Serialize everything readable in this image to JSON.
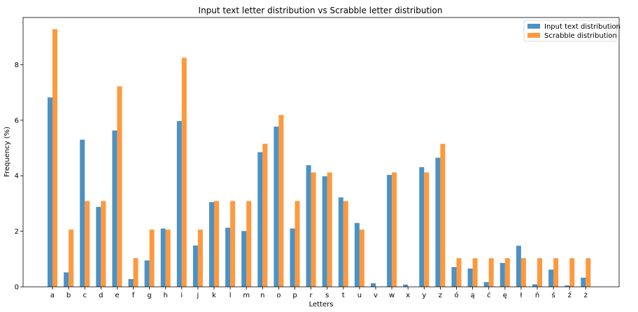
{
  "chart_data": {
    "type": "bar",
    "title": "Input text letter distribution vs Scrabble letter distribution",
    "xlabel": "Letters",
    "ylabel": "Frequency (%)",
    "ylim": [
      0,
      9.7
    ],
    "yticks": [
      0,
      2,
      4,
      6,
      8
    ],
    "grid": false,
    "legend_position": "top-right",
    "categories": [
      "a",
      "b",
      "c",
      "d",
      "e",
      "f",
      "g",
      "h",
      "i",
      "j",
      "k",
      "l",
      "m",
      "n",
      "o",
      "p",
      "r",
      "s",
      "t",
      "u",
      "v",
      "w",
      "x",
      "y",
      "z",
      "ó",
      "ą",
      "ć",
      "ę",
      "ł",
      "ń",
      "ś",
      "ź",
      "ż"
    ],
    "series": [
      {
        "name": "Input text distribution",
        "color": "#1f77b4",
        "values": [
          6.82,
          0.52,
          5.3,
          2.88,
          5.63,
          0.28,
          0.95,
          2.1,
          5.97,
          1.49,
          3.05,
          2.13,
          2.01,
          4.85,
          5.77,
          2.1,
          4.38,
          3.98,
          3.22,
          2.3,
          0.13,
          4.03,
          0.08,
          4.31,
          4.65,
          0.71,
          0.66,
          0.17,
          0.86,
          1.48,
          0.09,
          0.62,
          0.05,
          0.33
        ]
      },
      {
        "name": "Scrabble distribution",
        "color": "#ff7f0e",
        "values": [
          9.28,
          2.06,
          3.09,
          3.09,
          7.22,
          1.03,
          2.06,
          2.06,
          8.25,
          2.06,
          3.09,
          3.09,
          3.09,
          5.15,
          6.19,
          3.09,
          4.12,
          4.12,
          3.09,
          2.06,
          0,
          4.12,
          0,
          4.12,
          5.15,
          1.03,
          1.03,
          1.03,
          1.03,
          1.03,
          1.03,
          1.03,
          1.03,
          1.03
        ]
      }
    ]
  }
}
